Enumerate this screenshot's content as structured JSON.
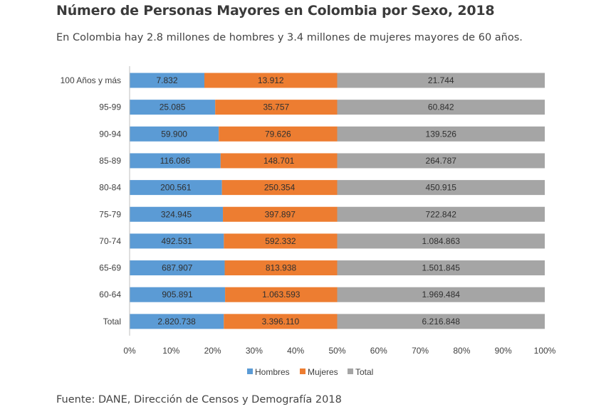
{
  "header": {
    "title": "Número de Personas Mayores en Colombia por Sexo, 2018",
    "subtitle": "En Colombia hay 2.8 millones de hombres y 3.4 millones de mujeres mayores de 60 años."
  },
  "footer": {
    "source": "Fuente: DANE, Dirección de Censos y Demografía 2018"
  },
  "chart_data": {
    "type": "bar",
    "orientation": "horizontal",
    "stacking": "percent",
    "categories": [
      "100 Años y más",
      "95-99",
      "90-94",
      "85-89",
      "80-84",
      "75-79",
      "70-74",
      "65-69",
      "60-64",
      "Total"
    ],
    "series": [
      {
        "name": "Hombres",
        "color": "#5b9bd5",
        "values": [
          7832,
          25085,
          59900,
          116086,
          200561,
          324945,
          492531,
          687907,
          905891,
          2820738
        ],
        "labels": [
          "7.832",
          "25.085",
          "59.900",
          "116.086",
          "200.561",
          "324.945",
          "492.531",
          "687.907",
          "905.891",
          "2.820.738"
        ]
      },
      {
        "name": "Mujeres",
        "color": "#ed7d31",
        "values": [
          13912,
          35757,
          79626,
          148701,
          250354,
          397897,
          592332,
          813938,
          1063593,
          3396110
        ],
        "labels": [
          "13.912",
          "35.757",
          "79.626",
          "148.701",
          "250.354",
          "397.897",
          "592.332",
          "813.938",
          "1.063.593",
          "3.396.110"
        ]
      },
      {
        "name": "Total",
        "color": "#a5a5a5",
        "values": [
          21744,
          60842,
          139526,
          264787,
          450915,
          722842,
          1084863,
          1501845,
          1969484,
          6216848
        ],
        "labels": [
          "21.744",
          "60.842",
          "139.526",
          "264.787",
          "450.915",
          "722.842",
          "1.084.863",
          "1.501.845",
          "1.969.484",
          "6.216.848"
        ]
      }
    ],
    "x_ticks": [
      "0%",
      "10%",
      "20%",
      "30%",
      "40%",
      "50%",
      "60%",
      "70%",
      "80%",
      "90%",
      "100%"
    ],
    "xlim": [
      0,
      100
    ],
    "legend": "bottom",
    "grid": false
  }
}
